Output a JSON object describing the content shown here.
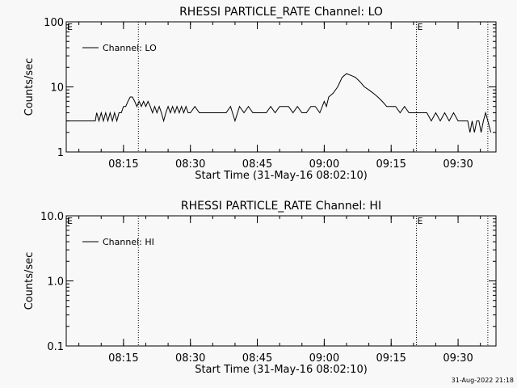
{
  "footer_timestamp": "31-Aug-2022 21:18",
  "chart_data": [
    {
      "type": "line",
      "title": "RHESSI PARTICLE_RATE Channel: LO",
      "xlabel": "Start Time (31-May-16 08:02:10)",
      "ylabel": "Counts/sec",
      "y_scale": "log",
      "ylim": [
        1,
        100
      ],
      "y_tick_values": [
        1,
        10,
        100
      ],
      "y_tick_labels": [
        "1",
        "10",
        "100"
      ],
      "xlim": [
        "08:02:10",
        "09:38:30"
      ],
      "x_ticks": [
        "08:15",
        "08:30",
        "08:45",
        "09:00",
        "09:15",
        "09:30"
      ],
      "vlines": [
        "08:18:20",
        "09:20:40",
        "09:36:40"
      ],
      "vline_markers": [
        {
          "time": "08:02:10",
          "text": "E"
        },
        {
          "time": "09:20:40",
          "text": "E"
        }
      ],
      "legend": {
        "placement": "top-left",
        "entries": [
          "Channel: LO"
        ]
      },
      "grid": false,
      "series": [
        {
          "name": "Channel: LO",
          "x": [
            "08:02:10",
            "08:08:40",
            "08:09:00",
            "08:09:30",
            "08:10:00",
            "08:10:30",
            "08:11:00",
            "08:11:30",
            "08:12:00",
            "08:12:30",
            "08:13:00",
            "08:13:30",
            "08:14:00",
            "08:14:30",
            "08:15:00",
            "08:15:30",
            "08:16:00",
            "08:16:30",
            "08:17:00",
            "08:17:30",
            "08:18:00",
            "08:18:30",
            "08:19:00",
            "08:19:30",
            "08:20:00",
            "08:20:30",
            "08:21:00",
            "08:21:30",
            "08:22:00",
            "08:22:30",
            "08:23:00",
            "08:23:30",
            "08:24:00",
            "08:24:30",
            "08:25:00",
            "08:25:30",
            "08:26:00",
            "08:26:30",
            "08:27:00",
            "08:27:30",
            "08:28:00",
            "08:28:30",
            "08:29:00",
            "08:29:30",
            "08:30:00",
            "08:31:00",
            "08:32:00",
            "08:34:00",
            "08:36:00",
            "08:38:00",
            "08:39:00",
            "08:40:00",
            "08:41:00",
            "08:42:00",
            "08:43:00",
            "08:44:00",
            "08:45:00",
            "08:47:00",
            "08:48:00",
            "08:49:00",
            "08:50:00",
            "08:52:00",
            "08:53:00",
            "08:54:00",
            "08:55:00",
            "08:56:00",
            "08:57:00",
            "08:58:00",
            "08:59:00",
            "09:00:00",
            "09:00:30",
            "09:01:00",
            "09:02:00",
            "09:03:00",
            "09:04:00",
            "09:05:00",
            "09:06:00",
            "09:07:00",
            "09:08:00",
            "09:09:00",
            "09:10:00",
            "09:11:00",
            "09:12:00",
            "09:13:00",
            "09:14:00",
            "09:15:00",
            "09:16:00",
            "09:17:00",
            "09:18:00",
            "09:19:00",
            "09:20:00",
            "09:21:00",
            "09:22:00",
            "09:23:00",
            "09:24:00",
            "09:25:00",
            "09:26:00",
            "09:27:00",
            "09:28:00",
            "09:29:00",
            "09:30:00",
            "09:30:40",
            "09:31:10",
            "09:31:40",
            "09:32:10",
            "09:32:40",
            "09:33:10",
            "09:33:40",
            "09:34:10",
            "09:34:40",
            "09:35:10",
            "09:35:40",
            "09:36:10",
            "09:36:40",
            "09:37:20"
          ],
          "values": [
            3,
            3,
            4,
            3,
            4,
            3,
            4,
            3,
            4,
            3,
            4,
            3,
            4,
            4,
            5,
            5,
            6,
            7,
            7,
            6,
            5,
            6,
            5,
            6,
            5,
            6,
            5,
            4,
            5,
            4,
            5,
            4,
            3,
            4,
            5,
            4,
            5,
            4,
            5,
            4,
            5,
            4,
            5,
            4,
            4,
            5,
            4,
            4,
            4,
            4,
            5,
            3,
            5,
            4,
            5,
            4,
            4,
            4,
            5,
            4,
            5,
            5,
            4,
            5,
            4,
            4,
            5,
            5,
            4,
            6,
            5,
            7,
            8,
            10,
            14,
            16,
            15,
            14,
            12,
            10,
            9,
            8,
            7,
            6,
            5,
            5,
            5,
            4,
            5,
            4,
            4,
            4,
            4,
            4,
            3,
            4,
            3,
            4,
            3,
            4,
            3,
            3,
            3,
            3,
            3,
            2,
            3,
            2,
            3,
            3,
            2,
            3,
            4,
            3,
            2
          ]
        }
      ]
    },
    {
      "type": "line",
      "title": "RHESSI PARTICLE_RATE Channel: HI",
      "xlabel": "Start Time (31-May-16 08:02:10)",
      "ylabel": "Counts/sec",
      "y_scale": "log",
      "ylim": [
        0.1,
        10
      ],
      "y_tick_values": [
        0.1,
        1,
        10
      ],
      "y_tick_labels": [
        "0.1",
        "1.0",
        "10.0"
      ],
      "xlim": [
        "08:02:10",
        "09:38:30"
      ],
      "x_ticks": [
        "08:15",
        "08:30",
        "08:45",
        "09:00",
        "09:15",
        "09:30"
      ],
      "vlines": [
        "08:18:20",
        "09:20:40",
        "09:36:40"
      ],
      "vline_markers": [
        {
          "time": "08:02:10",
          "text": "E"
        },
        {
          "time": "09:20:40",
          "text": "E"
        }
      ],
      "legend": {
        "placement": "top-left",
        "entries": [
          "Channel: HI"
        ]
      },
      "grid": false,
      "series": [
        {
          "name": "Channel: HI",
          "x": [],
          "values": []
        }
      ]
    }
  ]
}
